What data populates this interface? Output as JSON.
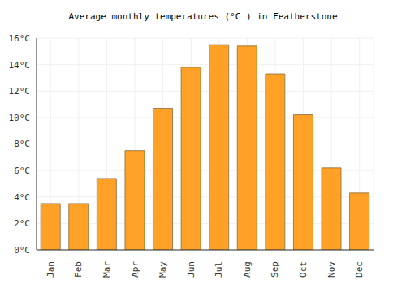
{
  "chart_data": {
    "type": "bar",
    "title": "Average monthly temperatures (°C ) in Featherstone",
    "categories": [
      "Jan",
      "Feb",
      "Mar",
      "Apr",
      "May",
      "Jun",
      "Jul",
      "Aug",
      "Sep",
      "Oct",
      "Nov",
      "Dec"
    ],
    "values": [
      3.5,
      3.5,
      5.4,
      7.5,
      10.7,
      13.8,
      15.5,
      15.4,
      13.3,
      10.2,
      6.2,
      4.3
    ],
    "color": "#ffa126",
    "ylim": [
      0,
      16
    ],
    "yticks": [
      {
        "value": 0,
        "label": "0°C"
      },
      {
        "value": 2,
        "label": "2°C"
      },
      {
        "value": 4,
        "label": "4°C"
      },
      {
        "value": 6,
        "label": "6°C"
      },
      {
        "value": 8,
        "label": "8°C"
      },
      {
        "value": 10,
        "label": "10°C"
      },
      {
        "value": 12,
        "label": "12°C"
      },
      {
        "value": 14,
        "label": "14°C"
      },
      {
        "value": 16,
        "label": "16°C"
      }
    ],
    "grid": true
  }
}
